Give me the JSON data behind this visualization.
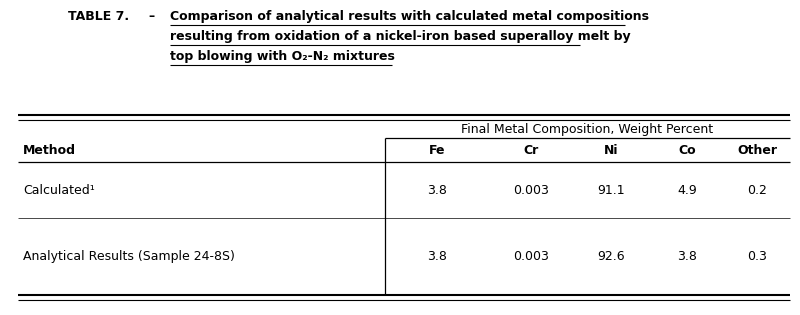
{
  "title_label": "TABLE 7.",
  "title_dash": "–",
  "title_line1": "Comparison of analytical results with calculated metal compositions",
  "title_line2": "resulting from oxidation of a nickel-iron based superalloy melt by",
  "title_line3": "top blowing with O₂-N₂ mixtures",
  "group_header": "Final Metal Composition, Weight Percent",
  "col_headers": [
    "Method",
    "Fe",
    "Cr",
    "Ni",
    "Co",
    "Other"
  ],
  "rows": [
    [
      "Calculated¹",
      "3.8",
      "0.003",
      "91.1",
      "4.9",
      "0.2"
    ],
    [
      "Analytical Results (Sample 24-8S)",
      "3.8",
      "0.003",
      "92.6",
      "3.8",
      "0.3"
    ]
  ],
  "bg_color": "#ffffff",
  "text_color": "#000000",
  "title_fontsize": 9.0,
  "header_fontsize": 9.0,
  "cell_fontsize": 9.0,
  "fig_width": 8.0,
  "fig_height": 3.15,
  "dpi": 100
}
